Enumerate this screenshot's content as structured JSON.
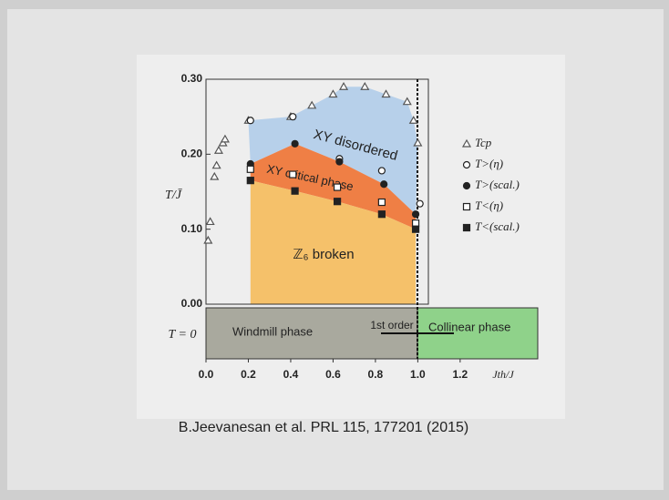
{
  "chart_data": {
    "type": "scatter",
    "y_label": "T/J̄",
    "x_label": "Jth/J",
    "xlim": [
      0,
      1.05
    ],
    "ylim": [
      0,
      0.3
    ],
    "xticks": [
      {
        "value": 0,
        "label": "0.0"
      },
      {
        "value": 0.2,
        "label": "0.2"
      },
      {
        "value": 0.4,
        "label": "0.4"
      },
      {
        "value": 0.6,
        "label": "0.6"
      },
      {
        "value": 0.8,
        "label": "0.8"
      },
      {
        "value": 1.0,
        "label": "1.0"
      },
      {
        "value": 1.2,
        "label": "1.2"
      }
    ],
    "yticks": [
      {
        "value": 0,
        "label": "0.00"
      },
      {
        "value": 0.1,
        "label": "0.10"
      },
      {
        "value": 0.2,
        "label": "0.20"
      },
      {
        "value": 0.3,
        "label": "0.30"
      }
    ],
    "regions": [
      "XY disordered",
      "XY critical phase",
      "ℤ₆ broken"
    ],
    "ground_state": {
      "label": "T = 0",
      "phases": [
        "Windmill phase",
        "1st order",
        "Collinear phase"
      ]
    },
    "caption": "B.Jeevanesan et al. PRL 115, 177201 (2015)",
    "series": [
      {
        "name": "Tcp",
        "marker": "triangle",
        "color": "#555555",
        "x": [
          0.01,
          0.02,
          0.04,
          0.05,
          0.06,
          0.08,
          0.09,
          0.2,
          0.4,
          0.5,
          0.6,
          0.65,
          0.75,
          0.85,
          0.95,
          0.98,
          1.0
        ],
        "values": [
          0.085,
          0.11,
          0.17,
          0.185,
          0.205,
          0.215,
          0.22,
          0.245,
          0.25,
          0.265,
          0.28,
          0.29,
          0.29,
          0.28,
          0.27,
          0.245,
          0.215
        ]
      },
      {
        "name": "T>(η)",
        "marker": "circle-open",
        "color": "#222222",
        "x": [
          0.21,
          0.41,
          0.63,
          0.83,
          1.01
        ],
        "values": [
          0.245,
          0.25,
          0.194,
          0.178,
          0.134
        ]
      },
      {
        "name": "T>(scal.)",
        "marker": "circle-filled",
        "color": "#222222",
        "x": [
          0.21,
          0.42,
          0.63,
          0.84,
          0.99
        ],
        "values": [
          0.187,
          0.214,
          0.19,
          0.16,
          0.12
        ]
      },
      {
        "name": "T<(η)",
        "marker": "square-open",
        "color": "#222222",
        "x": [
          0.21,
          0.41,
          0.62,
          0.83,
          0.99
        ],
        "values": [
          0.18,
          0.173,
          0.156,
          0.136,
          0.108
        ]
      },
      {
        "name": "T<(scal.)",
        "marker": "square-filled",
        "color": "#222222",
        "x": [
          0.21,
          0.42,
          0.62,
          0.83,
          0.99
        ],
        "values": [
          0.165,
          0.151,
          0.137,
          0.12,
          0.1
        ]
      }
    ]
  }
}
